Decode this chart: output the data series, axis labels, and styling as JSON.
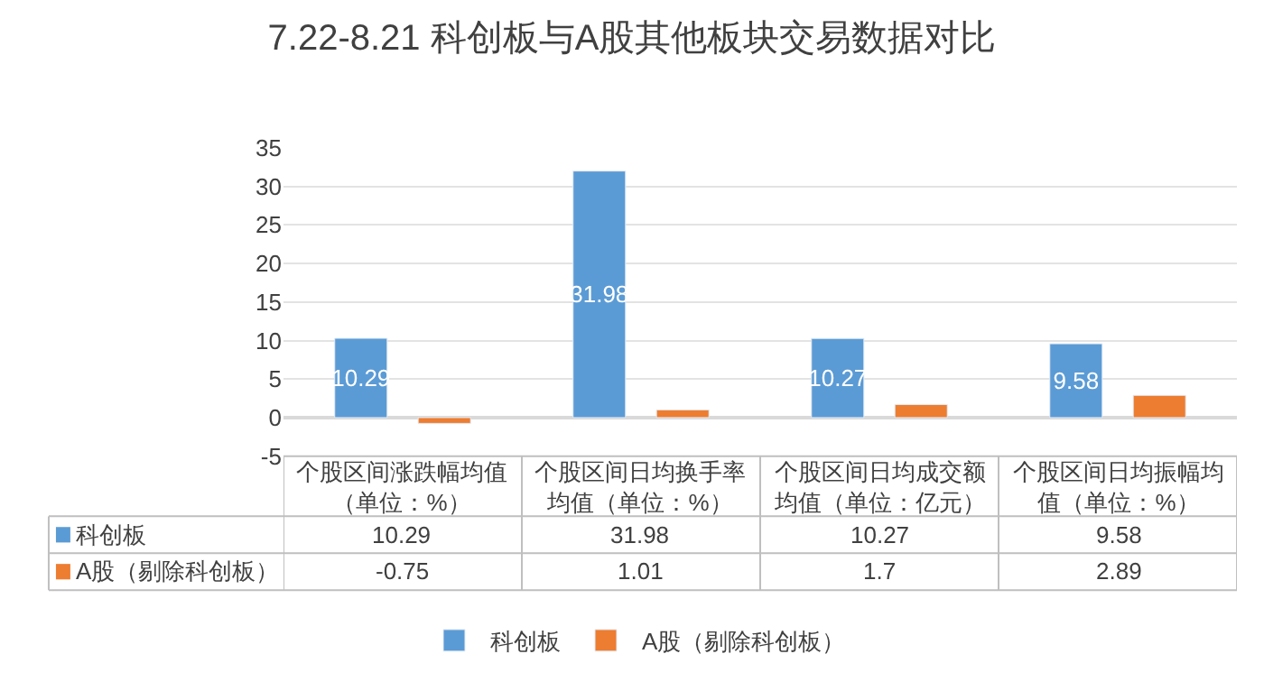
{
  "chart_data": {
    "type": "bar",
    "title": "7.22-8.21 科创板与A股其他板块交易数据对比",
    "categories": [
      "个股区间涨跌幅均值（单位：%）",
      "个股区间日均换手率均值（单位：%）",
      "个股区间日均成交额均值（单位：亿元）",
      "个股区间日均振幅均值（单位：%）"
    ],
    "series": [
      {
        "name": "科创板",
        "color": "#5b9bd5",
        "values": [
          10.29,
          31.98,
          10.27,
          9.58
        ],
        "value_labels": [
          "10.29",
          "31.98",
          "10.27",
          "9.58"
        ]
      },
      {
        "name": "A股（剔除科创板）",
        "color": "#ed7d31",
        "values": [
          -0.75,
          1.01,
          1.7,
          2.89
        ]
      }
    ],
    "ylim": [
      -5,
      35
    ],
    "yticks": [
      -5,
      0,
      5,
      10,
      15,
      20,
      25,
      30,
      35
    ],
    "grid": "y",
    "legend": "bottom",
    "data_labels": true
  }
}
